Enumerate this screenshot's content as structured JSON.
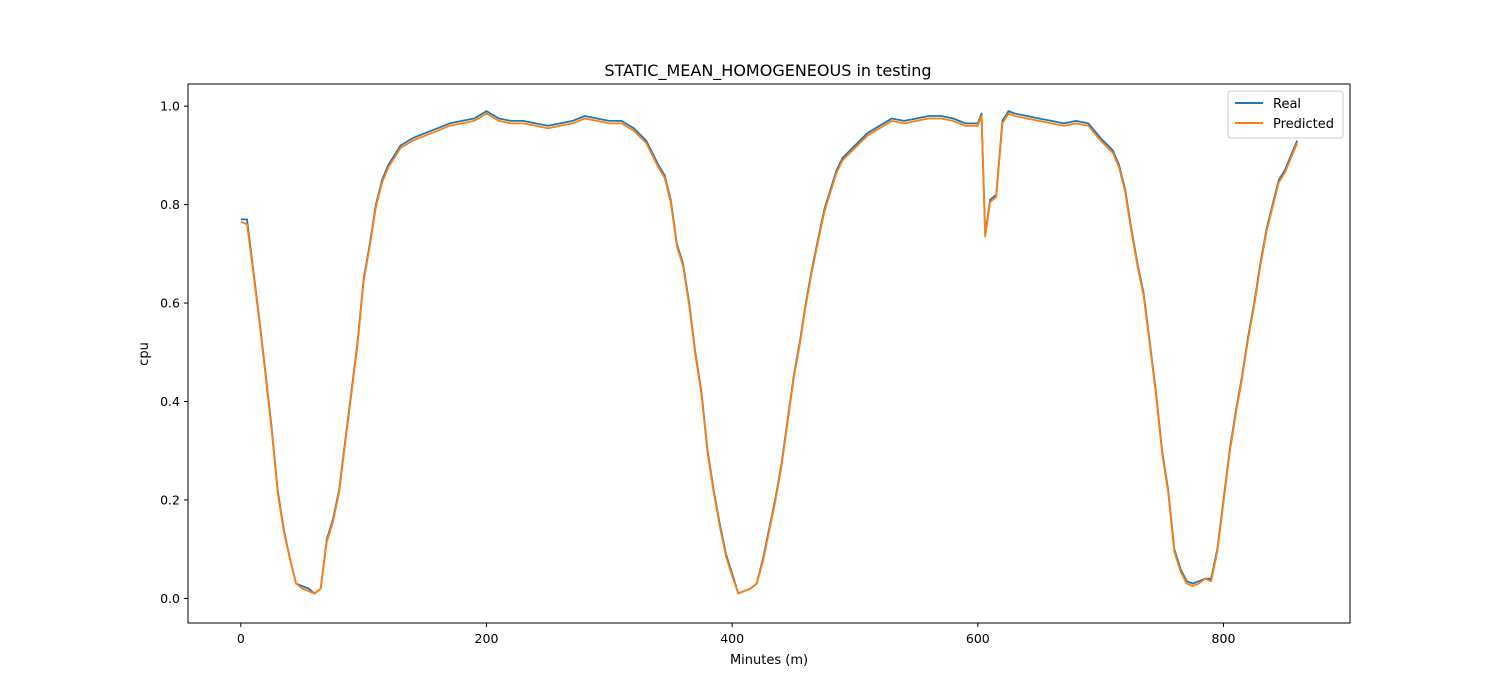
{
  "chart_data": {
    "type": "line",
    "title": "STATIC_MEAN_HOMOGENEOUS in testing",
    "xlabel": "Minutes (m)",
    "ylabel": "cpu",
    "xlim": [
      -43,
      903
    ],
    "ylim": [
      -0.05,
      1.045
    ],
    "xticks": [
      0,
      200,
      400,
      600,
      800
    ],
    "yticks": [
      0.0,
      0.2,
      0.4,
      0.6,
      0.8,
      1.0
    ],
    "xtick_labels": [
      "0",
      "200",
      "400",
      "600",
      "800"
    ],
    "ytick_labels": [
      "0.0",
      "0.2",
      "0.4",
      "0.6",
      "0.8",
      "1.0"
    ],
    "grid": false,
    "legend_position": "top-right",
    "series": [
      {
        "name": "Real",
        "color": "#1f77b4",
        "x": [
          0,
          5,
          10,
          15,
          20,
          25,
          30,
          35,
          40,
          45,
          50,
          55,
          60,
          65,
          70,
          75,
          80,
          85,
          90,
          95,
          100,
          105,
          110,
          115,
          120,
          125,
          130,
          140,
          150,
          160,
          170,
          180,
          190,
          200,
          210,
          220,
          230,
          240,
          250,
          260,
          270,
          280,
          290,
          300,
          310,
          320,
          330,
          340,
          345,
          350,
          355,
          360,
          365,
          370,
          375,
          380,
          385,
          390,
          395,
          400,
          405,
          410,
          415,
          420,
          425,
          430,
          435,
          440,
          445,
          450,
          455,
          460,
          465,
          470,
          475,
          480,
          485,
          490,
          500,
          510,
          520,
          530,
          540,
          550,
          560,
          570,
          580,
          590,
          600,
          603,
          606,
          610,
          615,
          620,
          625,
          630,
          640,
          650,
          660,
          670,
          680,
          690,
          700,
          710,
          715,
          720,
          725,
          730,
          735,
          740,
          745,
          750,
          755,
          760,
          765,
          770,
          775,
          780,
          785,
          790,
          795,
          800,
          805,
          810,
          815,
          820,
          825,
          830,
          835,
          840,
          845,
          850,
          855,
          860
        ],
        "values": [
          0.77,
          0.77,
          0.67,
          0.57,
          0.46,
          0.35,
          0.22,
          0.14,
          0.08,
          0.03,
          0.025,
          0.02,
          0.01,
          0.02,
          0.12,
          0.16,
          0.22,
          0.32,
          0.42,
          0.52,
          0.65,
          0.72,
          0.8,
          0.85,
          0.88,
          0.9,
          0.92,
          0.935,
          0.945,
          0.955,
          0.965,
          0.97,
          0.975,
          0.99,
          0.975,
          0.97,
          0.97,
          0.965,
          0.96,
          0.965,
          0.97,
          0.98,
          0.975,
          0.97,
          0.97,
          0.955,
          0.93,
          0.88,
          0.86,
          0.81,
          0.72,
          0.68,
          0.6,
          0.5,
          0.42,
          0.3,
          0.22,
          0.15,
          0.09,
          0.05,
          0.01,
          0.015,
          0.02,
          0.03,
          0.08,
          0.14,
          0.2,
          0.27,
          0.36,
          0.45,
          0.52,
          0.6,
          0.67,
          0.73,
          0.79,
          0.83,
          0.87,
          0.895,
          0.92,
          0.945,
          0.96,
          0.975,
          0.97,
          0.975,
          0.98,
          0.98,
          0.975,
          0.965,
          0.965,
          0.985,
          0.74,
          0.81,
          0.82,
          0.97,
          0.99,
          0.985,
          0.98,
          0.975,
          0.97,
          0.965,
          0.97,
          0.965,
          0.935,
          0.91,
          0.88,
          0.83,
          0.75,
          0.68,
          0.62,
          0.52,
          0.42,
          0.3,
          0.22,
          0.1,
          0.06,
          0.035,
          0.03,
          0.035,
          0.04,
          0.04,
          0.1,
          0.2,
          0.3,
          0.38,
          0.45,
          0.53,
          0.6,
          0.68,
          0.75,
          0.8,
          0.85,
          0.87,
          0.9,
          0.93
        ]
      },
      {
        "name": "Predicted",
        "color": "#ff7f0e",
        "x": [
          0,
          5,
          10,
          15,
          20,
          25,
          30,
          35,
          40,
          45,
          50,
          55,
          60,
          65,
          70,
          75,
          80,
          85,
          90,
          95,
          100,
          105,
          110,
          115,
          120,
          125,
          130,
          140,
          150,
          160,
          170,
          180,
          190,
          200,
          210,
          220,
          230,
          240,
          250,
          260,
          270,
          280,
          290,
          300,
          310,
          320,
          330,
          340,
          345,
          350,
          355,
          360,
          365,
          370,
          375,
          380,
          385,
          390,
          395,
          400,
          405,
          410,
          415,
          420,
          425,
          430,
          435,
          440,
          445,
          450,
          455,
          460,
          465,
          470,
          475,
          480,
          485,
          490,
          500,
          510,
          520,
          530,
          540,
          550,
          560,
          570,
          580,
          590,
          600,
          603,
          606,
          610,
          615,
          620,
          625,
          630,
          640,
          650,
          660,
          670,
          680,
          690,
          700,
          710,
          715,
          720,
          725,
          730,
          735,
          740,
          745,
          750,
          755,
          760,
          765,
          770,
          775,
          780,
          785,
          790,
          795,
          800,
          805,
          810,
          815,
          820,
          825,
          830,
          835,
          840,
          845,
          850,
          855,
          860
        ],
        "values": [
          0.765,
          0.76,
          0.665,
          0.565,
          0.455,
          0.345,
          0.215,
          0.135,
          0.08,
          0.03,
          0.02,
          0.015,
          0.01,
          0.02,
          0.115,
          0.155,
          0.215,
          0.315,
          0.415,
          0.515,
          0.645,
          0.715,
          0.795,
          0.845,
          0.875,
          0.895,
          0.915,
          0.93,
          0.94,
          0.95,
          0.96,
          0.965,
          0.97,
          0.985,
          0.97,
          0.965,
          0.965,
          0.96,
          0.955,
          0.96,
          0.965,
          0.975,
          0.97,
          0.965,
          0.965,
          0.95,
          0.925,
          0.875,
          0.855,
          0.805,
          0.715,
          0.675,
          0.595,
          0.495,
          0.415,
          0.295,
          0.215,
          0.145,
          0.085,
          0.045,
          0.01,
          0.015,
          0.02,
          0.03,
          0.075,
          0.135,
          0.195,
          0.265,
          0.355,
          0.445,
          0.515,
          0.595,
          0.665,
          0.725,
          0.785,
          0.825,
          0.865,
          0.89,
          0.915,
          0.94,
          0.955,
          0.97,
          0.965,
          0.97,
          0.975,
          0.975,
          0.97,
          0.96,
          0.96,
          0.98,
          0.735,
          0.805,
          0.815,
          0.965,
          0.985,
          0.98,
          0.975,
          0.97,
          0.965,
          0.96,
          0.965,
          0.96,
          0.93,
          0.905,
          0.875,
          0.825,
          0.745,
          0.675,
          0.615,
          0.515,
          0.415,
          0.295,
          0.215,
          0.095,
          0.055,
          0.03,
          0.025,
          0.03,
          0.04,
          0.035,
          0.095,
          0.195,
          0.295,
          0.375,
          0.445,
          0.525,
          0.595,
          0.675,
          0.745,
          0.795,
          0.845,
          0.865,
          0.895,
          0.925
        ]
      }
    ]
  }
}
